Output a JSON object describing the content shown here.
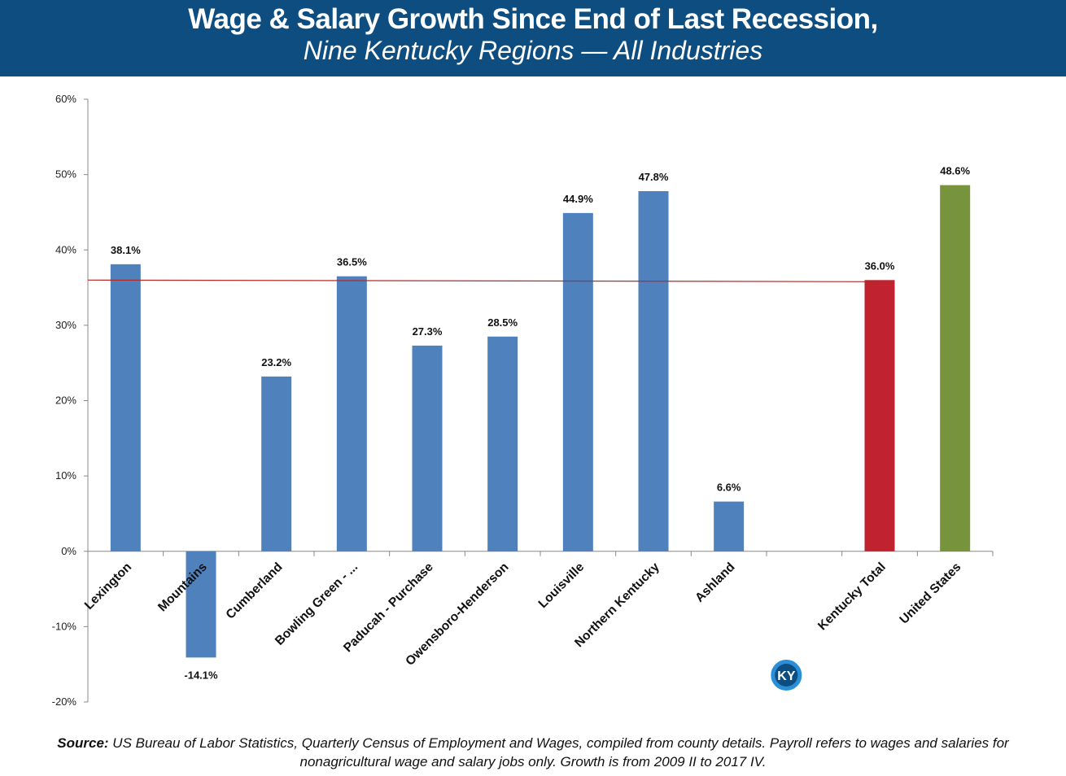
{
  "header": {
    "title": "Wage & Salary Growth Since End of Last Recession,",
    "subtitle": "Nine Kentucky Regions — All Industries"
  },
  "colors": {
    "header_bg": "#0d4d80",
    "region_bar": "#4f81bd",
    "kentucky_bar": "#c0232f",
    "us_bar": "#77933c",
    "reference_line": "#b22a2a"
  },
  "badge": {
    "text": "KY",
    "icon": "ky-logo-icon"
  },
  "source": {
    "label": "Source:",
    "text": "US Bureau of Labor Statistics, Quarterly Census of Employment and Wages, compiled from county details. Payroll refers to wages and salaries for nonagricultural wage and salary jobs only. Growth is from 2009 II to 2017 IV."
  },
  "chart_data": {
    "type": "bar",
    "categories": [
      "Lexington",
      "Mountains",
      "Cumberland",
      "Bowling Green - ...",
      "Paducah - Purchase",
      "Owensboro-Henderson",
      "Louisville",
      "Northern Kentucky",
      "Ashland",
      "",
      "Kentucky Total",
      "United States"
    ],
    "values": [
      38.1,
      -14.1,
      23.2,
      36.5,
      27.3,
      28.5,
      44.9,
      47.8,
      6.6,
      null,
      36.0,
      48.6
    ],
    "data_labels": [
      "38.1%",
      "-14.1%",
      "23.2%",
      "36.5%",
      "27.3%",
      "28.5%",
      "44.9%",
      "47.8%",
      "6.6%",
      "",
      "36.0%",
      "48.6%"
    ],
    "bar_colors": [
      "#4f81bd",
      "#4f81bd",
      "#4f81bd",
      "#4f81bd",
      "#4f81bd",
      "#4f81bd",
      "#4f81bd",
      "#4f81bd",
      "#4f81bd",
      "",
      "#c0232f",
      "#77933c"
    ],
    "reference_line": {
      "value": 36.0
    },
    "ylim": [
      -20,
      60
    ],
    "yticks": [
      -20,
      -10,
      0,
      10,
      20,
      30,
      40,
      50,
      60
    ],
    "ytick_labels": [
      "-20%",
      "-10%",
      "0%",
      "10%",
      "20%",
      "30%",
      "40%",
      "50%",
      "60%"
    ],
    "grid": false,
    "xlabel": "",
    "ylabel": ""
  }
}
